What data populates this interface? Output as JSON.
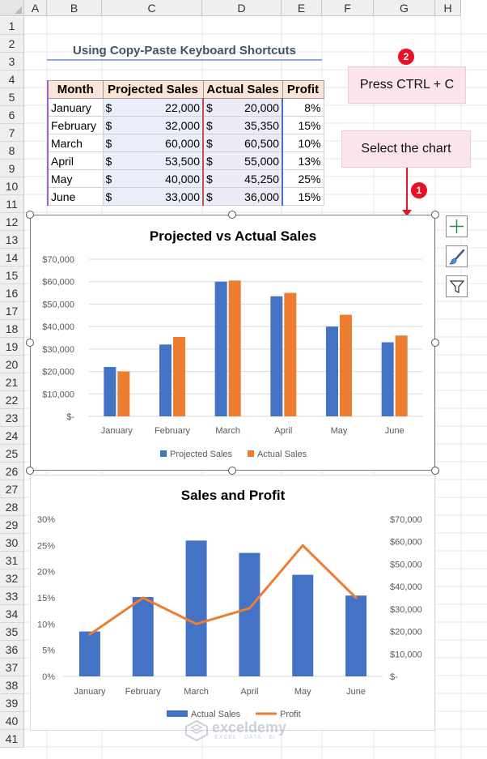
{
  "columns": [
    "A",
    "B",
    "C",
    "D",
    "E",
    "F",
    "G",
    "H"
  ],
  "rows": [
    "1",
    "2",
    "3",
    "4",
    "5",
    "6",
    "7",
    "8",
    "9",
    "10",
    "11",
    "12",
    "13",
    "14",
    "15",
    "16",
    "17",
    "18",
    "19",
    "20",
    "21",
    "22",
    "23",
    "24",
    "25",
    "26",
    "27",
    "28",
    "29",
    "30",
    "31",
    "32",
    "33",
    "34",
    "35",
    "36",
    "37",
    "38",
    "39",
    "40",
    "41"
  ],
  "title": "Using Copy-Paste Keyboard Shortcuts",
  "table": {
    "headers": [
      "Month",
      "Projected Sales",
      "Actual Sales",
      "Profit"
    ],
    "currency_symbol": "$",
    "rows": [
      {
        "month": "January",
        "projected": "22,000",
        "actual": "20,000",
        "profit": "8%"
      },
      {
        "month": "February",
        "projected": "32,000",
        "actual": "35,350",
        "profit": "15%"
      },
      {
        "month": "March",
        "projected": "60,000",
        "actual": "60,500",
        "profit": "10%"
      },
      {
        "month": "April",
        "projected": "53,500",
        "actual": "55,000",
        "profit": "13%"
      },
      {
        "month": "May",
        "projected": "40,000",
        "actual": "45,250",
        "profit": "25%"
      },
      {
        "month": "June",
        "projected": "33,000",
        "actual": "36,000",
        "profit": "15%"
      }
    ]
  },
  "callouts": {
    "step1": {
      "badge": "1",
      "text": "Select the chart"
    },
    "step2": {
      "badge": "2",
      "text": "Press CTRL + C"
    }
  },
  "chart_buttons": [
    {
      "icon": "plus-icon"
    },
    {
      "icon": "brush-icon"
    },
    {
      "icon": "filter-icon"
    }
  ],
  "watermark": {
    "name": "exceldemy",
    "tagline": "EXCEL · DATA · BI"
  },
  "colors": {
    "blue": "#4472c4",
    "orange": "#ed7d31",
    "pink": "#fce4ec",
    "badge_red": "#e81123"
  },
  "chart_data": [
    {
      "type": "bar",
      "title": "Projected vs Actual Sales",
      "categories": [
        "January",
        "February",
        "March",
        "April",
        "May",
        "June"
      ],
      "series": [
        {
          "name": "Projected Sales",
          "values": [
            22000,
            32000,
            60000,
            53500,
            40000,
            33000
          ],
          "color": "#4472c4"
        },
        {
          "name": "Actual Sales",
          "values": [
            20000,
            35350,
            60500,
            55000,
            45250,
            36000
          ],
          "color": "#ed7d31"
        }
      ],
      "ylim": [
        0,
        70000
      ],
      "ytick_labels": [
        "$-",
        "$10,000",
        "$20,000",
        "$30,000",
        "$40,000",
        "$50,000",
        "$60,000",
        "$70,000"
      ],
      "grid": true,
      "legend": "bottom"
    },
    {
      "type": "bar",
      "title": "Sales and Profit",
      "categories": [
        "January",
        "February",
        "March",
        "April",
        "May",
        "June"
      ],
      "series": [
        {
          "name": "Actual Sales",
          "kind": "bar",
          "axis": "secondary",
          "values": [
            20000,
            35350,
            60500,
            55000,
            45250,
            36000
          ],
          "color": "#4472c4"
        },
        {
          "name": "Profit",
          "kind": "line",
          "axis": "primary",
          "values": [
            0.08,
            0.15,
            0.1,
            0.13,
            0.25,
            0.15
          ],
          "color": "#ed7d31"
        }
      ],
      "ylim_primary": [
        0,
        0.3
      ],
      "ylim_secondary": [
        0,
        70000
      ],
      "ytick_labels_primary": [
        "0%",
        "5%",
        "10%",
        "15%",
        "20%",
        "25%",
        "30%"
      ],
      "ytick_labels_secondary": [
        "$-",
        "$10,000",
        "$20,000",
        "$30,000",
        "$40,000",
        "$50,000",
        "$60,000",
        "$70,000"
      ],
      "grid": false,
      "legend": "bottom"
    }
  ]
}
